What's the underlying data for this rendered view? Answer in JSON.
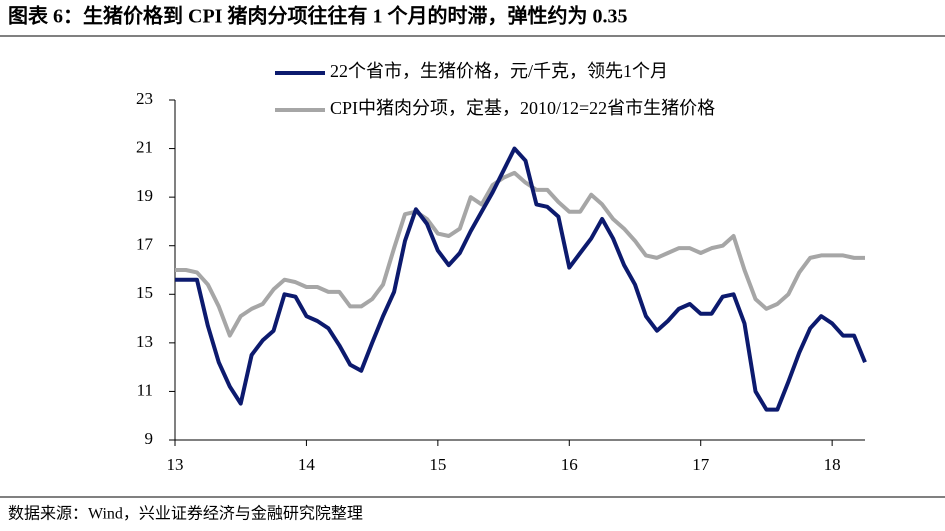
{
  "chart_data": {
    "type": "line",
    "title": "图表 6：生猪价格到 CPI 猪肉分项往往有 1 个月的时滞，弹性约为 0.35",
    "source": "数据来源：Wind，兴业证券经济与金融研究院整理",
    "x": [
      13,
      13.083,
      13.167,
      13.25,
      13.333,
      13.417,
      13.5,
      13.583,
      13.667,
      13.75,
      13.833,
      13.917,
      14,
      14.083,
      14.167,
      14.25,
      14.333,
      14.417,
      14.5,
      14.583,
      14.667,
      14.75,
      14.833,
      14.917,
      15,
      15.083,
      15.167,
      15.25,
      15.333,
      15.417,
      15.5,
      15.583,
      15.667,
      15.75,
      15.833,
      15.917,
      16,
      16.083,
      16.167,
      16.25,
      16.333,
      16.417,
      16.5,
      16.583,
      16.667,
      16.75,
      16.833,
      16.917,
      17,
      17.083,
      17.167,
      17.25,
      17.333,
      17.417,
      17.5,
      17.583,
      17.667,
      17.75,
      17.833,
      17.917,
      18,
      18.083,
      18.167,
      18.25
    ],
    "series": [
      {
        "name": "22个省市，生猪价格，元/千克，领先1个月",
        "color": "#0c1a6e",
        "values": [
          15.6,
          15.6,
          15.6,
          13.7,
          12.2,
          11.2,
          10.5,
          12.5,
          13.1,
          13.5,
          15.0,
          14.9,
          14.1,
          13.9,
          13.6,
          12.9,
          12.1,
          11.85,
          13.0,
          14.1,
          15.1,
          17.2,
          18.5,
          17.9,
          16.8,
          16.2,
          16.7,
          17.6,
          18.4,
          19.2,
          20.1,
          21.0,
          20.5,
          18.7,
          18.6,
          18.2,
          16.1,
          16.7,
          17.3,
          18.1,
          17.3,
          16.2,
          15.4,
          14.1,
          13.5,
          13.9,
          14.4,
          14.6,
          14.2,
          14.2,
          14.9,
          15.0,
          13.8,
          11.0,
          10.25,
          10.25,
          11.4,
          12.6,
          13.6,
          14.1,
          13.8,
          13.3,
          13.3,
          12.2
        ]
      },
      {
        "name": "CPI中猪肉分项，定基，2010/12=22省市生猪价格",
        "color": "#a6a6a6",
        "values": [
          16.0,
          16.0,
          15.9,
          15.4,
          14.5,
          13.3,
          14.1,
          14.4,
          14.6,
          15.2,
          15.6,
          15.5,
          15.3,
          15.3,
          15.1,
          15.1,
          14.5,
          14.5,
          14.8,
          15.4,
          16.9,
          18.3,
          18.4,
          18.1,
          17.5,
          17.4,
          17.7,
          19.0,
          18.7,
          19.5,
          19.8,
          20.0,
          19.6,
          19.3,
          19.3,
          18.8,
          18.4,
          18.4,
          19.1,
          18.7,
          18.1,
          17.7,
          17.2,
          16.6,
          16.5,
          16.7,
          16.9,
          16.9,
          16.7,
          16.9,
          17.0,
          17.4,
          16.0,
          14.8,
          14.4,
          14.6,
          15.0,
          15.9,
          16.5,
          16.6,
          16.6,
          16.6,
          16.5,
          16.5
        ]
      }
    ],
    "xlim": [
      13,
      18.25
    ],
    "xticks": [
      13,
      14,
      15,
      16,
      17,
      18
    ],
    "ylim": [
      9,
      23
    ],
    "yticks": [
      9,
      11,
      13,
      15,
      17,
      19,
      21,
      23
    ],
    "legend": "top"
  }
}
